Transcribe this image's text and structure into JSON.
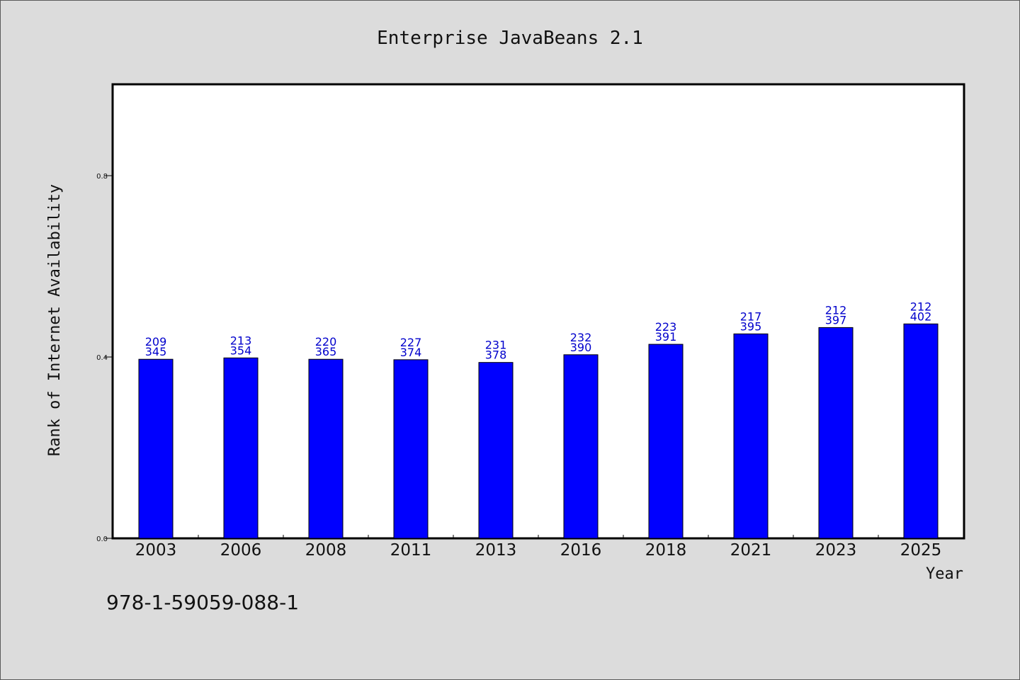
{
  "chart_data": {
    "type": "bar",
    "title": "Enterprise JavaBeans 2.1",
    "xlabel": "Year",
    "ylabel": "Rank of Internet Availability",
    "categories": [
      "2003",
      "2006",
      "2008",
      "2011",
      "2013",
      "2016",
      "2018",
      "2021",
      "2023",
      "2025"
    ],
    "values": [
      0.395,
      0.398,
      0.395,
      0.394,
      0.388,
      0.405,
      0.428,
      0.451,
      0.465,
      0.473
    ],
    "label_top": [
      "209",
      "213",
      "220",
      "227",
      "231",
      "232",
      "223",
      "217",
      "212",
      "212"
    ],
    "label_bottom": [
      "345",
      "354",
      "365",
      "374",
      "378",
      "390",
      "391",
      "395",
      "397",
      "402"
    ],
    "yticks": [
      0.0,
      0.4,
      0.8
    ],
    "ytick_labels": [
      "0.0",
      "0.4",
      "0.8"
    ],
    "ylim": [
      0,
      1.0
    ],
    "grid": false,
    "bar_color": "#0000ff",
    "label_color": "#0000cc"
  },
  "footer": {
    "isbn": "978-1-59059-088-1"
  }
}
